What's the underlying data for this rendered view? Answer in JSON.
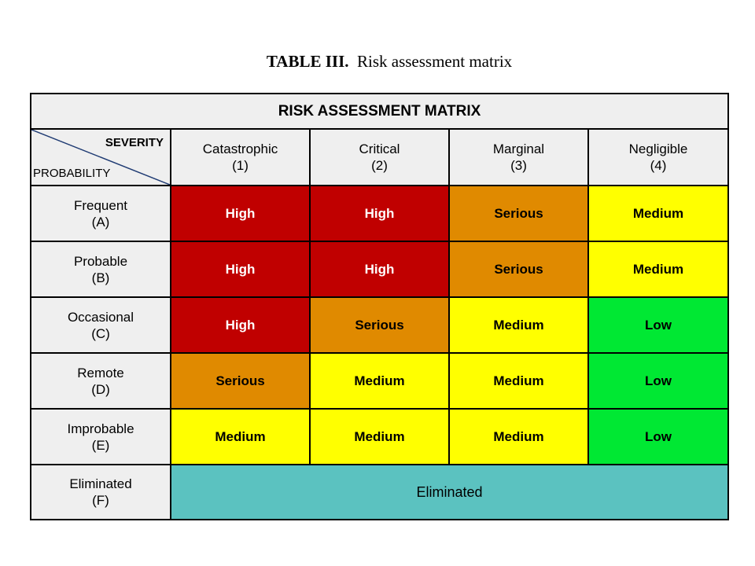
{
  "caption": {
    "label": "TABLE III.",
    "text": "Risk assessment matrix"
  },
  "matrix": {
    "title": "RISK ASSESSMENT MATRIX",
    "corner": {
      "severity_label": "SEVERITY",
      "probability_label": "PROBABILITY"
    },
    "severity": [
      {
        "name": "Catastrophic",
        "code": "(1)"
      },
      {
        "name": "Critical",
        "code": "(2)"
      },
      {
        "name": "Marginal",
        "code": "(3)"
      },
      {
        "name": "Negligible",
        "code": "(4)"
      }
    ],
    "probability": [
      {
        "name": "Frequent",
        "code": "(A)"
      },
      {
        "name": "Probable",
        "code": "(B)"
      },
      {
        "name": "Occasional",
        "code": "(C)"
      },
      {
        "name": "Remote",
        "code": "(D)"
      },
      {
        "name": "Improbable",
        "code": "(E)"
      },
      {
        "name": "Eliminated",
        "code": "(F)"
      }
    ],
    "cells": [
      [
        "High",
        "High",
        "Serious",
        "Medium"
      ],
      [
        "High",
        "High",
        "Serious",
        "Medium"
      ],
      [
        "High",
        "Serious",
        "Medium",
        "Low"
      ],
      [
        "Serious",
        "Medium",
        "Medium",
        "Low"
      ],
      [
        "Medium",
        "Medium",
        "Medium",
        "Low"
      ]
    ],
    "eliminated_row_value": "Eliminated",
    "level_colors": {
      "High": "#c00000",
      "Serious": "#e08a00",
      "Medium": "#ffff00",
      "Low": "#00e833",
      "Eliminated": "#5bc2c0"
    }
  }
}
